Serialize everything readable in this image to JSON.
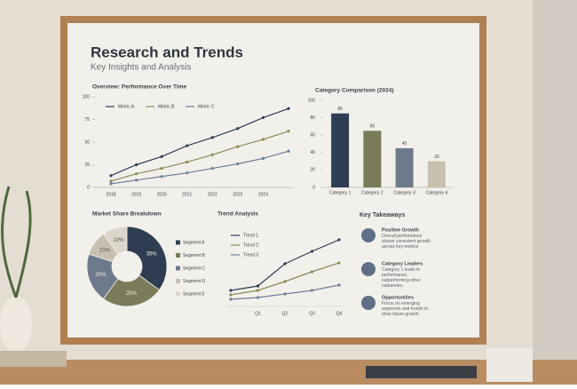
{
  "header": {
    "title": "Research and Trends",
    "subtitle": "Key Insights and Analysis"
  },
  "chart_data": [
    {
      "type": "line",
      "title": "Overview: Performance Over Time",
      "categories": [
        "2018",
        "2019",
        "2020",
        "2021",
        "2022",
        "2023",
        "2024",
        null
      ],
      "series": [
        {
          "name": "Metric A",
          "color": "#2f3d52",
          "values": [
            13,
            25,
            34,
            46,
            55,
            65,
            77,
            87
          ]
        },
        {
          "name": "Metric B",
          "color": "#8c8a55",
          "values": [
            7,
            15,
            21,
            28,
            36,
            45,
            53,
            62
          ]
        },
        {
          "name": "Metric C",
          "color": "#6d7f99",
          "values": [
            4,
            8,
            12,
            16,
            21,
            26,
            32,
            40
          ]
        }
      ],
      "ylim": [
        0,
        100
      ],
      "yticks": [
        0,
        25,
        50,
        75,
        100
      ]
    },
    {
      "type": "bar",
      "title": "Category Comparison (2024)",
      "categories": [
        "Category 1",
        "Category 2",
        "Category 3",
        "Category 4"
      ],
      "values": [
        85,
        65,
        45,
        30
      ],
      "colors": [
        "#2f3d52",
        "#7a7b58",
        "#6d7a8c",
        "#c9c0ae"
      ],
      "ylim": [
        0,
        100
      ],
      "yticks": [
        0,
        20,
        40,
        60,
        80,
        100
      ]
    },
    {
      "type": "pie",
      "title": "Market Share Breakdown",
      "categories": [
        "Segment A",
        "Segment B",
        "Segment C",
        "Segment D",
        "Segment E"
      ],
      "values": [
        35,
        25,
        20,
        10,
        10
      ],
      "value_labels": [
        "35%",
        "25%",
        "20%",
        "10%",
        "10%"
      ],
      "colors": [
        "#2f3d52",
        "#7a7b58",
        "#6d7a8c",
        "#c8bfae",
        "#ddd7cb"
      ]
    },
    {
      "type": "line",
      "title": "Trend Analysis",
      "categories": [
        null,
        "Q1",
        "Q2",
        "Q3",
        "Q4"
      ],
      "series": [
        {
          "name": "Trend 1",
          "color": "#2f3d52",
          "values": [
            18,
            23,
            48,
            62,
            75
          ]
        },
        {
          "name": "Trend 2",
          "color": "#8c8a55",
          "values": [
            13,
            18,
            28,
            39,
            49
          ]
        },
        {
          "name": "Trend 3",
          "color": "#6d7f99",
          "values": [
            8,
            10,
            14,
            18,
            24
          ]
        }
      ],
      "ylim": [
        0,
        80
      ]
    }
  ],
  "takeaways": {
    "heading": "Key Takeaways",
    "items": [
      {
        "title": "Positive Growth",
        "text": "Overall performance shown consistent growth across key metrics"
      },
      {
        "title": "Category Leaders",
        "text": "Category 1 leads in performance, outperforming other categories."
      },
      {
        "title": "Opportunities",
        "text": "Focus on emerging segments and trends to drive future growth."
      }
    ]
  }
}
